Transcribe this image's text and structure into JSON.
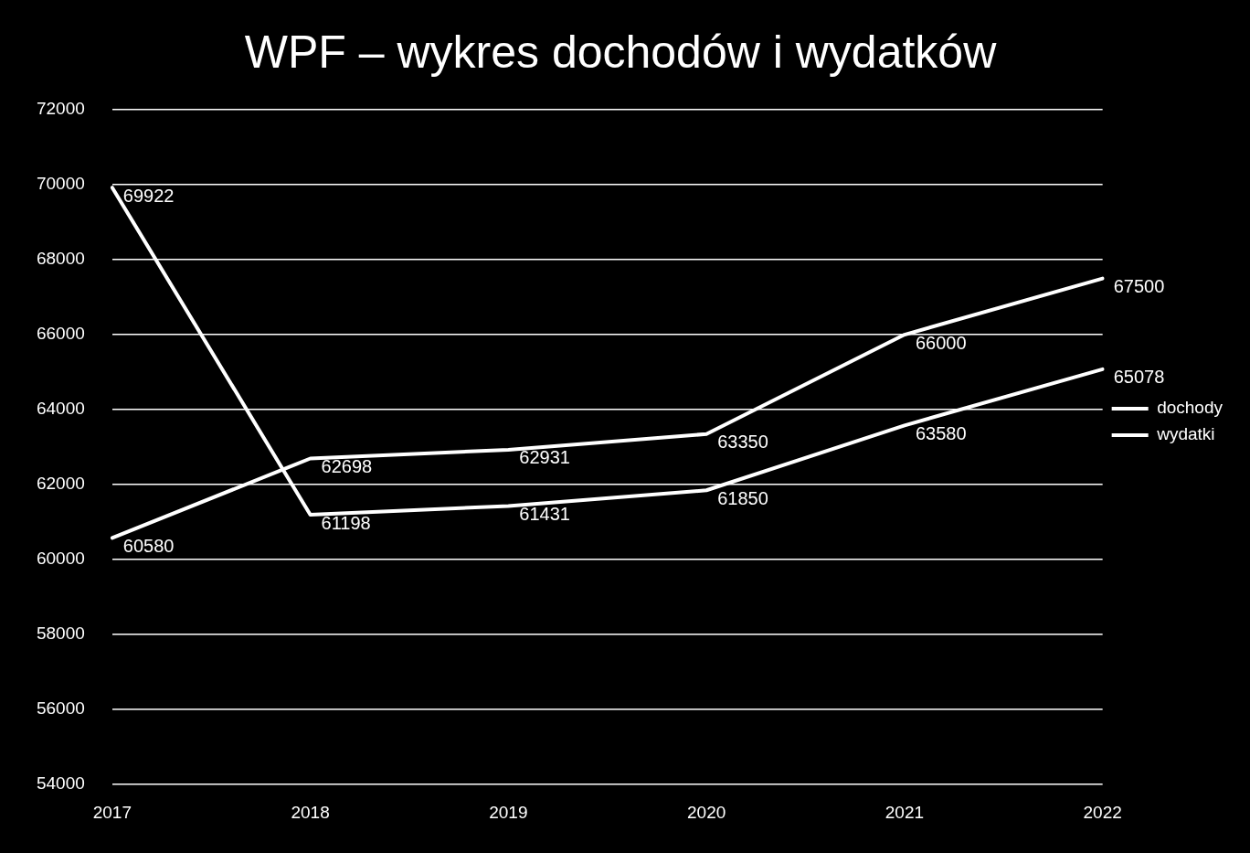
{
  "chart_data": {
    "type": "line",
    "title": "WPF – wykres dochodów i wydatków",
    "categories": [
      "2017",
      "2018",
      "2019",
      "2020",
      "2021",
      "2022"
    ],
    "series": [
      {
        "name": "dochody",
        "color": "#ffffff",
        "values": [
          60580,
          62698,
          62931,
          63350,
          66000,
          67500
        ]
      },
      {
        "name": "wydatki",
        "color": "#ffffff",
        "values": [
          69922,
          61198,
          61431,
          61850,
          63580,
          65078
        ]
      }
    ],
    "ylim": [
      54000,
      72000
    ],
    "yticks": [
      54000,
      56000,
      58000,
      60000,
      62000,
      64000,
      66000,
      68000,
      70000,
      72000
    ],
    "grid": "y",
    "legend": "right",
    "marker": "none",
    "data_labels": true
  }
}
